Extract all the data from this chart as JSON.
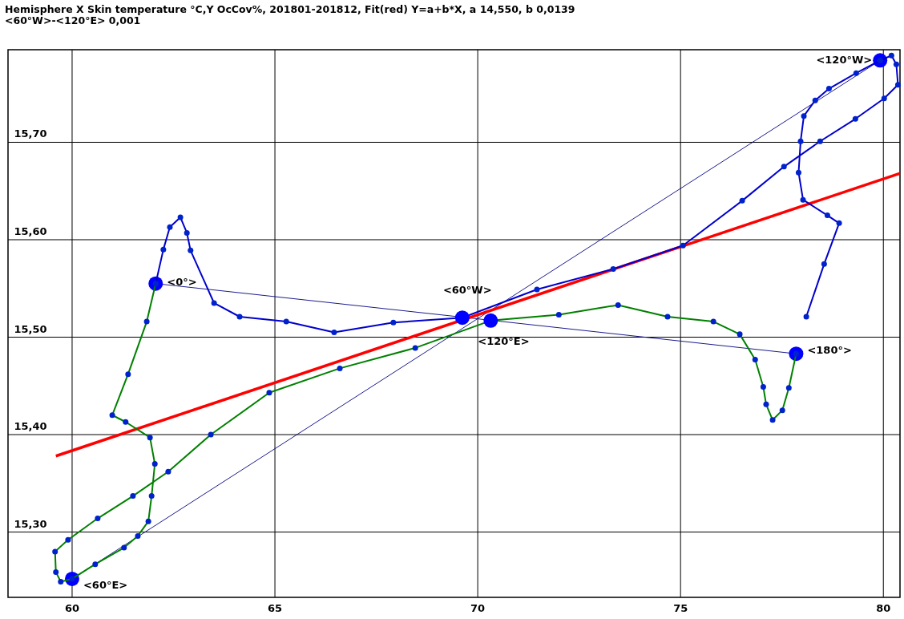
{
  "chart_data": {
    "type": "line",
    "title": "Hemisphere X Skin temperature  °C,Y OcCov%, 201801-201812, Fit(red) Y=a+b*X, a 14,550, b 0,0139",
    "subtitle": "<60°W>-<120°E>  0,001",
    "xlim": [
      58.42,
      80.41
    ],
    "xticks": [
      60,
      65,
      70,
      75,
      80
    ],
    "ylim": [
      15.233,
      15.795
    ],
    "yticks": [
      {
        "value": 15.3,
        "label": "15,30"
      },
      {
        "value": 15.4,
        "label": "15,40"
      },
      {
        "value": 15.5,
        "label": "15,50"
      },
      {
        "value": 15.6,
        "label": "15,60"
      },
      {
        "value": 15.7,
        "label": "15,70"
      }
    ],
    "grid": true,
    "series": [
      {
        "color": "#000080",
        "marker": "circle",
        "x": [
          62.06,
          77.85
        ],
        "values": [
          15.555,
          15.483
        ]
      },
      {
        "color": "#000080",
        "marker": "circle",
        "x": [
          60.0,
          79.92
        ],
        "values": [
          15.252,
          15.784
        ]
      },
      {
        "color": "#ff0000",
        "x": [
          59.6,
          80.4
        ],
        "values": [
          15.378,
          15.668
        ]
      },
      {
        "color": "#0000cc",
        "marker": "circle",
        "x": [
          62.06,
          62.25,
          62.41,
          62.67,
          62.83,
          62.92,
          63.5,
          64.13,
          65.28,
          66.46,
          67.92,
          69.62,
          71.46,
          73.34,
          75.06,
          76.52,
          77.55,
          78.44,
          79.31,
          80.02,
          80.36,
          80.32,
          80.2,
          79.92,
          79.33,
          78.66,
          78.32,
          78.04,
          77.96,
          77.91,
          78.02,
          78.62,
          78.91,
          78.54,
          78.1
        ],
        "values": [
          15.555,
          15.59,
          15.613,
          15.623,
          15.607,
          15.589,
          15.535,
          15.521,
          15.516,
          15.505,
          15.515,
          15.52,
          15.549,
          15.57,
          15.594,
          15.64,
          15.675,
          15.701,
          15.724,
          15.745,
          15.759,
          15.78,
          15.789,
          15.784,
          15.771,
          15.755,
          15.743,
          15.727,
          15.701,
          15.669,
          15.641,
          15.625,
          15.617,
          15.575,
          15.521
        ]
      },
      {
        "color": "#008000",
        "marker": "circle",
        "x": [
          77.85,
          77.67,
          77.51,
          77.27,
          77.11,
          77.04,
          76.84,
          76.46,
          75.81,
          74.68,
          73.46,
          72.0,
          70.32,
          68.46,
          66.6,
          64.86,
          63.42,
          62.37,
          61.5,
          60.63,
          59.9,
          59.58,
          59.6,
          59.72,
          60.0,
          60.57,
          61.28,
          61.62,
          61.88,
          61.96,
          62.04,
          61.92,
          61.32,
          60.99,
          61.38,
          61.84,
          62.06
        ],
        "values": [
          15.483,
          15.448,
          15.425,
          15.415,
          15.431,
          15.449,
          15.477,
          15.503,
          15.516,
          15.521,
          15.533,
          15.523,
          15.517,
          15.489,
          15.468,
          15.443,
          15.4,
          15.362,
          15.337,
          15.314,
          15.292,
          15.28,
          15.259,
          15.249,
          15.252,
          15.267,
          15.284,
          15.296,
          15.311,
          15.337,
          15.37,
          15.397,
          15.413,
          15.42,
          15.462,
          15.516,
          15.555
        ]
      },
      {
        "type": "scatter",
        "color": "#0000ff",
        "marker": "circle",
        "x": [
          69.62,
          70.32
        ],
        "values": [
          15.52,
          15.517
        ]
      }
    ],
    "annotations": [
      {
        "text": "<0°>",
        "x": 62.06,
        "y": 15.555
      },
      {
        "text": "<60°W>",
        "x": 69.62,
        "y": 15.52
      },
      {
        "text": "<120°W>",
        "x": 79.92,
        "y": 15.784
      },
      {
        "text": "<180°>",
        "x": 77.85,
        "y": 15.483
      },
      {
        "text": "<120°E>",
        "x": 70.32,
        "y": 15.517
      },
      {
        "text": "<60°E>",
        "x": 60.0,
        "y": 15.252
      }
    ]
  }
}
